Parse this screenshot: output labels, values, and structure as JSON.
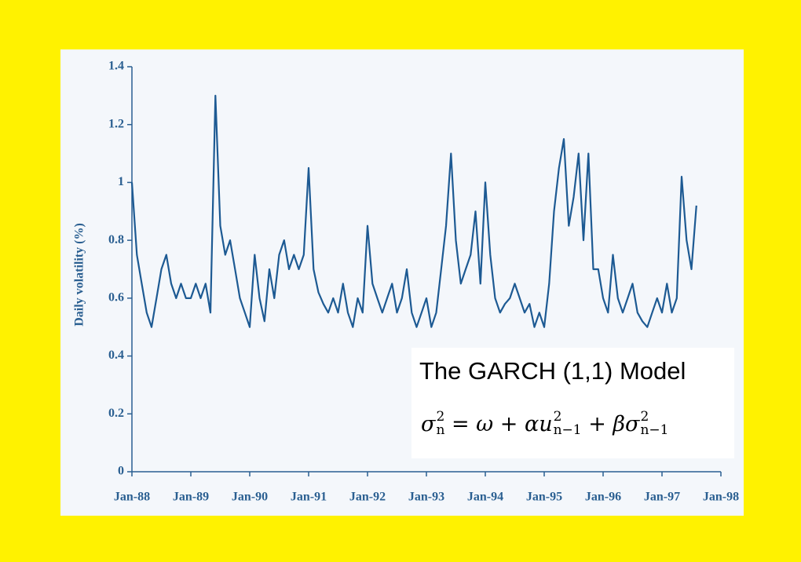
{
  "chart_data": {
    "type": "line",
    "y_label": "Daily volatility (%)",
    "color": "#1d5a93",
    "x": [
      "Jan-88",
      "Feb-88",
      "Mar-88",
      "Apr-88",
      "May-88",
      "Jun-88",
      "Jul-88",
      "Aug-88",
      "Sep-88",
      "Oct-88",
      "Nov-88",
      "Dec-88",
      "Jan-89",
      "Feb-89",
      "Mar-89",
      "Apr-89",
      "May-89",
      "Jun-89",
      "Jul-89",
      "Aug-89",
      "Sep-89",
      "Oct-89",
      "Nov-89",
      "Dec-89",
      "Jan-90",
      "Feb-90",
      "Mar-90",
      "Apr-90",
      "May-90",
      "Jun-90",
      "Jul-90",
      "Aug-90",
      "Sep-90",
      "Oct-90",
      "Nov-90",
      "Dec-90",
      "Jan-91",
      "Feb-91",
      "Mar-91",
      "Apr-91",
      "May-91",
      "Jun-91",
      "Jul-91",
      "Aug-91",
      "Sep-91",
      "Oct-91",
      "Nov-91",
      "Dec-91",
      "Jan-92",
      "Feb-92",
      "Mar-92",
      "Apr-92",
      "May-92",
      "Jun-92",
      "Jul-92",
      "Aug-92",
      "Sep-92",
      "Oct-92",
      "Nov-92",
      "Dec-92",
      "Jan-93",
      "Feb-93",
      "Mar-93",
      "Apr-93",
      "May-93",
      "Jun-93",
      "Jul-93",
      "Aug-93",
      "Sep-93",
      "Oct-93",
      "Nov-93",
      "Dec-93",
      "Jan-94",
      "Feb-94",
      "Mar-94",
      "Apr-94",
      "May-94",
      "Jun-94",
      "Jul-94",
      "Aug-94",
      "Sep-94",
      "Oct-94",
      "Nov-94",
      "Dec-94",
      "Jan-95",
      "Feb-95",
      "Mar-95",
      "Apr-95",
      "May-95",
      "Jun-95",
      "Jul-95",
      "Aug-95",
      "Sep-95",
      "Oct-95",
      "Nov-95",
      "Dec-95",
      "Jan-96",
      "Feb-96",
      "Mar-96",
      "Apr-96",
      "May-96",
      "Jun-96",
      "Jul-96",
      "Aug-96",
      "Sep-96",
      "Oct-96",
      "Nov-96",
      "Dec-96",
      "Jan-97",
      "Feb-97",
      "Mar-97",
      "Apr-97",
      "May-97",
      "Jun-97",
      "Jul-97",
      "Aug-97"
    ],
    "values": [
      1.0,
      0.75,
      0.65,
      0.55,
      0.5,
      0.6,
      0.7,
      0.75,
      0.65,
      0.6,
      0.65,
      0.6,
      0.6,
      0.65,
      0.6,
      0.65,
      0.55,
      1.3,
      0.85,
      0.75,
      0.8,
      0.7,
      0.6,
      0.55,
      0.5,
      0.75,
      0.6,
      0.52,
      0.7,
      0.6,
      0.75,
      0.8,
      0.7,
      0.75,
      0.7,
      0.75,
      1.05,
      0.7,
      0.62,
      0.58,
      0.55,
      0.6,
      0.55,
      0.65,
      0.55,
      0.5,
      0.6,
      0.55,
      0.85,
      0.65,
      0.6,
      0.55,
      0.6,
      0.65,
      0.55,
      0.6,
      0.7,
      0.55,
      0.5,
      0.55,
      0.6,
      0.5,
      0.55,
      0.7,
      0.85,
      1.1,
      0.8,
      0.65,
      0.7,
      0.75,
      0.9,
      0.65,
      1.0,
      0.75,
      0.6,
      0.55,
      0.58,
      0.6,
      0.65,
      0.6,
      0.55,
      0.58,
      0.5,
      0.55,
      0.5,
      0.65,
      0.9,
      1.05,
      1.15,
      0.85,
      0.95,
      1.1,
      0.8,
      1.1,
      0.7,
      0.7,
      0.6,
      0.55,
      0.75,
      0.6,
      0.55,
      0.6,
      0.65,
      0.55,
      0.52,
      0.5,
      0.55,
      0.6,
      0.55,
      0.65,
      0.55,
      0.6,
      1.02,
      0.8,
      0.7,
      0.92
    ],
    "xlim": [
      "Jan-88",
      "Jan-98"
    ],
    "xticks": [
      "Jan-88",
      "Jan-89",
      "Jan-90",
      "Jan-91",
      "Jan-92",
      "Jan-93",
      "Jan-94",
      "Jan-95",
      "Jan-96",
      "Jan-97",
      "Jan-98"
    ],
    "ylim": [
      0,
      1.4
    ],
    "yticks": [
      0,
      0.2,
      0.4,
      0.6,
      0.8,
      1,
      1.2,
      1.4
    ]
  },
  "annotation": {
    "title": "The GARCH (1,1) Model",
    "formula": [
      {
        "base": "σ",
        "sup": "2",
        "sub": "n"
      },
      {
        "base": " = ω + α"
      },
      {
        "base": "u",
        "sup": "2",
        "sub": "n−1"
      },
      {
        "base": " + β"
      },
      {
        "base": "σ",
        "sup": "2",
        "sub": "n−1"
      }
    ]
  }
}
